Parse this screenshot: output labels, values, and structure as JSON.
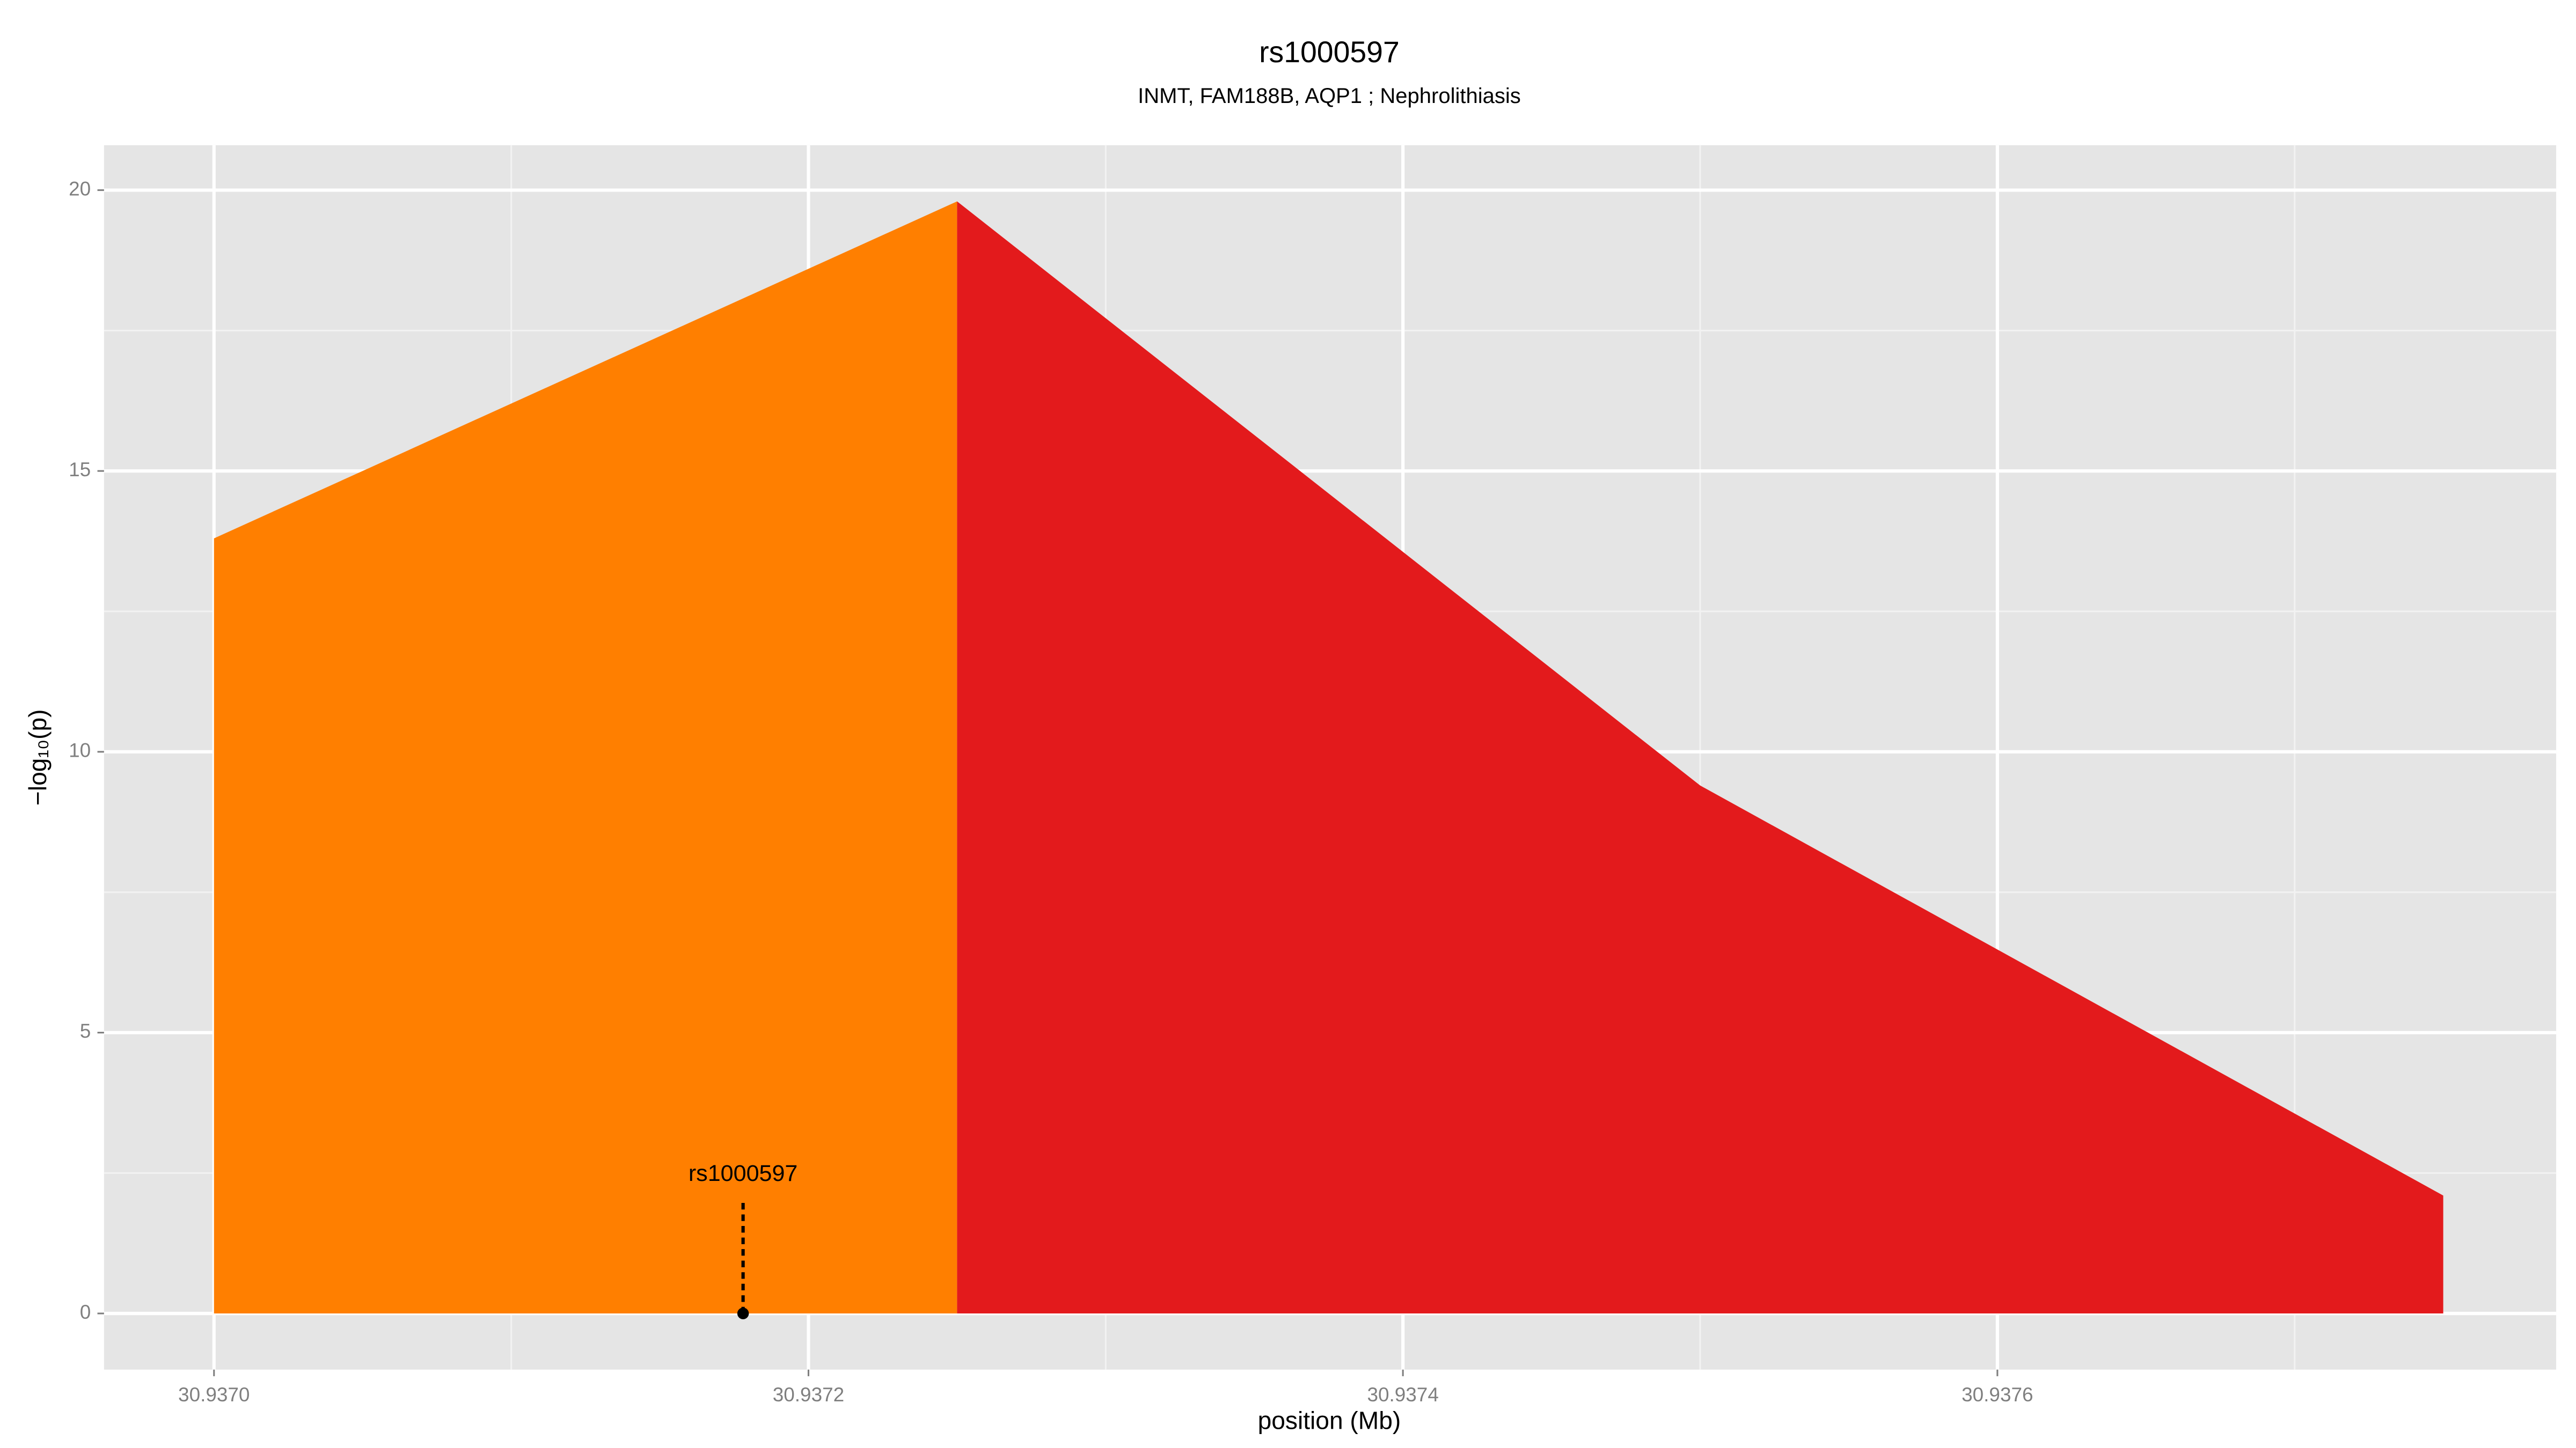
{
  "chart_data": {
    "type": "area",
    "title": "rs1000597",
    "subtitle": "INMT, FAM188B, AQP1 ; Nephrolithiasis",
    "x_label": "position (Mb)",
    "y_label": "−log₁₀(p)",
    "series": [
      {
        "color": "#ff7f00",
        "x": [
          30.937,
          30.93725
        ],
        "values": [
          13.8,
          19.8
        ]
      },
      {
        "color": "#e31a1c",
        "x": [
          30.93725,
          30.9375,
          30.93775
        ],
        "values": [
          19.8,
          9.4,
          2.1
        ]
      }
    ],
    "annotation": {
      "label": "rs1000597",
      "x": 30.937178,
      "y": 0,
      "line_top": 2
    },
    "xlim": [
      30.936963,
      30.937788
    ],
    "ylim": [
      -1,
      20.8
    ],
    "xticks": [
      {
        "value": 30.937,
        "label": "30.9370"
      },
      30.9372,
      30.9374,
      30.9376
    ],
    "yticks": [
      0,
      5,
      10,
      15,
      20
    ],
    "grid": true
  }
}
